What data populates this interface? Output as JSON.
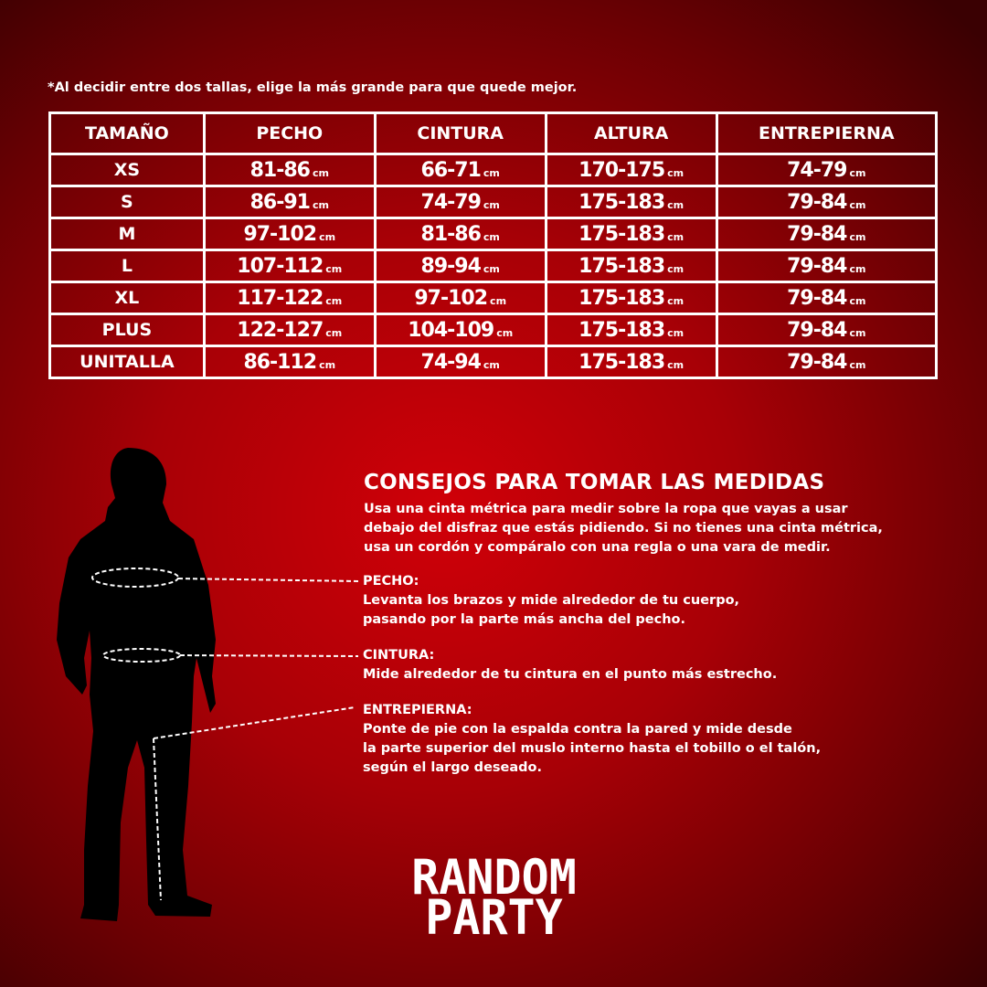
{
  "note": "*Al decidir entre dos tallas, elige la más grande para que quede mejor.",
  "table": {
    "headers": [
      "TAMAÑO",
      "PECHO",
      "CINTURA",
      "ALTURA",
      "ENTREPIERNA"
    ],
    "unit": "cm",
    "rows": [
      {
        "size": "XS",
        "pecho": "81-86",
        "cintura": "66-71",
        "altura": "170-175",
        "entrepierna": "74-79"
      },
      {
        "size": "S",
        "pecho": "86-91",
        "cintura": "74-79",
        "altura": "175-183",
        "entrepierna": "79-84"
      },
      {
        "size": "M",
        "pecho": "97-102",
        "cintura": "81-86",
        "altura": "175-183",
        "entrepierna": "79-84"
      },
      {
        "size": "L",
        "pecho": "107-112",
        "cintura": "89-94",
        "altura": "175-183",
        "entrepierna": "79-84"
      },
      {
        "size": "XL",
        "pecho": "117-122",
        "cintura": "97-102",
        "altura": "175-183",
        "entrepierna": "79-84"
      },
      {
        "size": "PLUS",
        "pecho": "122-127",
        "cintura": "104-109",
        "altura": "175-183",
        "entrepierna": "79-84"
      },
      {
        "size": "UNITALLA",
        "pecho": "86-112",
        "cintura": "74-94",
        "altura": "175-183",
        "entrepierna": "79-84"
      }
    ]
  },
  "tips": {
    "title": "CONSEJOS PARA TOMAR LAS MEDIDAS",
    "intro_lines": [
      "Usa una cinta métrica para medir sobre la ropa que vayas a usar",
      "debajo del disfraz que estás pidiendo. Si no tienes una cinta métrica,",
      "usa un cordón y compáralo con una regla o una vara de medir."
    ],
    "pecho": {
      "label": "PECHO:",
      "lines": [
        "Levanta los brazos y mide alrededor de tu cuerpo,",
        "pasando por la parte más ancha del pecho."
      ]
    },
    "cintura": {
      "label": "CINTURA:",
      "lines": [
        "Mide alrededor de tu cintura en el punto más estrecho."
      ]
    },
    "entrepierna": {
      "label": "ENTREPIERNA:",
      "lines": [
        "Ponte de pie con la espalda contra la pared y mide desde",
        "la parte superior del muslo interno hasta el tobillo o el talón,",
        "según el largo deseado."
      ]
    }
  },
  "logo": {
    "line1": "RANDOM",
    "line2": "PARTY"
  },
  "colors": {
    "background": "#c00006",
    "text": "#ffffff",
    "silhouette": "#000000"
  }
}
